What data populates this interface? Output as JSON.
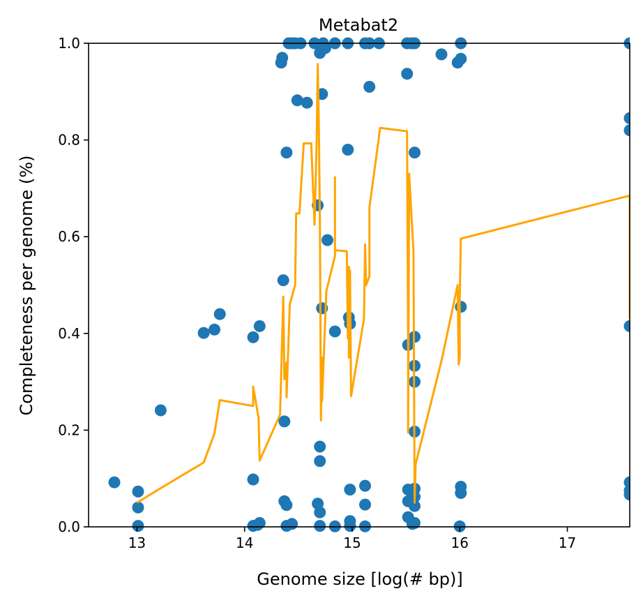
{
  "chart_data": {
    "type": "scatter",
    "title": "Metabat2",
    "xlabel": "Genome size [log(# bp)]",
    "ylabel": "Completeness per genome (%)",
    "xlim": [
      12.55,
      17.58
    ],
    "ylim": [
      0,
      1.0
    ],
    "xticks": [
      "13",
      "14",
      "15",
      "16",
      "17"
    ],
    "yticks": [
      "0.0",
      "0.2",
      "0.4",
      "0.6",
      "0.8",
      "1.0"
    ],
    "grid": false,
    "colors": {
      "points": "#1f77b4",
      "line": "#ffa500"
    },
    "series": [
      {
        "type": "scatter",
        "points": [
          [
            12.79,
            0.092
          ],
          [
            13.01,
            0.073
          ],
          [
            13.01,
            0.04
          ],
          [
            13.01,
            0.002
          ],
          [
            13.22,
            0.241
          ],
          [
            13.62,
            0.401
          ],
          [
            13.72,
            0.408
          ],
          [
            13.77,
            0.44
          ],
          [
            14.08,
            0.392
          ],
          [
            14.08,
            0.098
          ],
          [
            14.08,
            0.002
          ],
          [
            14.12,
            0.004
          ],
          [
            14.14,
            0.415
          ],
          [
            14.14,
            0.008
          ],
          [
            14.34,
            0.96
          ],
          [
            14.35,
            0.97
          ],
          [
            14.36,
            0.51
          ],
          [
            14.37,
            0.218
          ],
          [
            14.37,
            0.053
          ],
          [
            14.39,
            0.045
          ],
          [
            14.39,
            0.774
          ],
          [
            14.39,
            0.002
          ],
          [
            14.41,
            1.0
          ],
          [
            14.43,
            1.0
          ],
          [
            14.44,
            0.006
          ],
          [
            14.46,
            1.0
          ],
          [
            14.47,
            1.0
          ],
          [
            14.49,
            0.882
          ],
          [
            14.52,
            1.0
          ],
          [
            14.58,
            0.877
          ],
          [
            14.65,
            1.0
          ],
          [
            14.68,
            0.665
          ],
          [
            14.68,
            0.048
          ],
          [
            14.7,
            0.98
          ],
          [
            14.7,
            0.166
          ],
          [
            14.7,
            0.136
          ],
          [
            14.7,
            0.03
          ],
          [
            14.7,
            0.002
          ],
          [
            14.72,
            0.895
          ],
          [
            14.72,
            0.452
          ],
          [
            14.73,
            1.0
          ],
          [
            14.75,
            0.99
          ],
          [
            14.77,
            0.593
          ],
          [
            14.84,
            1.0
          ],
          [
            14.84,
            0.404
          ],
          [
            14.84,
            0.001
          ],
          [
            14.96,
            1.0
          ],
          [
            14.96,
            0.78
          ],
          [
            14.97,
            0.433
          ],
          [
            14.98,
            0.42
          ],
          [
            14.98,
            0.077
          ],
          [
            14.98,
            0.012
          ],
          [
            14.98,
            0.002
          ],
          [
            15.12,
            1.0
          ],
          [
            15.12,
            0.085
          ],
          [
            15.12,
            0.046
          ],
          [
            15.12,
            0.001
          ],
          [
            15.16,
            1.0
          ],
          [
            15.16,
            0.91
          ],
          [
            15.25,
            1.0
          ],
          [
            15.51,
            1.0
          ],
          [
            15.51,
            0.937
          ],
          [
            15.52,
            0.376
          ],
          [
            15.52,
            0.077
          ],
          [
            15.52,
            0.053
          ],
          [
            15.52,
            0.02
          ],
          [
            15.55,
            1.0
          ],
          [
            15.56,
            0.006
          ],
          [
            15.58,
            1.0
          ],
          [
            15.58,
            0.774
          ],
          [
            15.58,
            0.393
          ],
          [
            15.58,
            0.333
          ],
          [
            15.58,
            0.3
          ],
          [
            15.58,
            0.197
          ],
          [
            15.58,
            0.079
          ],
          [
            15.58,
            0.062
          ],
          [
            15.58,
            0.043
          ],
          [
            15.58,
            0.008
          ],
          [
            15.83,
            0.977
          ],
          [
            15.98,
            0.96
          ],
          [
            16.0,
            0.001
          ],
          [
            16.01,
            1.0
          ],
          [
            16.01,
            0.968
          ],
          [
            16.01,
            0.455
          ],
          [
            16.01,
            0.083
          ],
          [
            16.01,
            0.07
          ],
          [
            17.58,
            1.0
          ],
          [
            17.58,
            0.845
          ],
          [
            17.58,
            0.82
          ],
          [
            17.58,
            0.415
          ],
          [
            17.58,
            0.092
          ],
          [
            17.58,
            0.075
          ],
          [
            17.58,
            0.067
          ]
        ]
      },
      {
        "type": "line",
        "points": [
          [
            13.0,
            0.05
          ],
          [
            13.22,
            0.08
          ],
          [
            13.62,
            0.133
          ],
          [
            13.72,
            0.193
          ],
          [
            13.77,
            0.262
          ],
          [
            14.08,
            0.25
          ],
          [
            14.08,
            0.29
          ],
          [
            14.13,
            0.225
          ],
          [
            14.14,
            0.137
          ],
          [
            14.33,
            0.232
          ],
          [
            14.36,
            0.476
          ],
          [
            14.37,
            0.305
          ],
          [
            14.39,
            0.34
          ],
          [
            14.39,
            0.268
          ],
          [
            14.42,
            0.46
          ],
          [
            14.47,
            0.5
          ],
          [
            14.48,
            0.648
          ],
          [
            14.51,
            0.648
          ],
          [
            14.55,
            0.793
          ],
          [
            14.62,
            0.793
          ],
          [
            14.65,
            0.625
          ],
          [
            14.67,
            0.8
          ],
          [
            14.68,
            0.957
          ],
          [
            14.69,
            0.84
          ],
          [
            14.7,
            0.635
          ],
          [
            14.71,
            0.22
          ],
          [
            14.72,
            0.35
          ],
          [
            14.72,
            0.26
          ],
          [
            14.76,
            0.487
          ],
          [
            14.84,
            0.56
          ],
          [
            14.84,
            0.723
          ],
          [
            14.84,
            0.572
          ],
          [
            14.95,
            0.57
          ],
          [
            14.96,
            0.39
          ],
          [
            14.97,
            0.538
          ],
          [
            14.97,
            0.35
          ],
          [
            14.98,
            0.45
          ],
          [
            14.98,
            0.53
          ],
          [
            14.99,
            0.27
          ],
          [
            15.11,
            0.43
          ],
          [
            15.12,
            0.584
          ],
          [
            15.13,
            0.5
          ],
          [
            15.16,
            0.518
          ],
          [
            15.16,
            0.66
          ],
          [
            15.26,
            0.825
          ],
          [
            15.51,
            0.818
          ],
          [
            15.52,
            0.36
          ],
          [
            15.52,
            0.195
          ],
          [
            15.53,
            0.73
          ],
          [
            15.57,
            0.57
          ],
          [
            15.58,
            0.05
          ],
          [
            15.59,
            0.13
          ],
          [
            15.83,
            0.343
          ],
          [
            15.98,
            0.5
          ],
          [
            15.99,
            0.336
          ],
          [
            16.0,
            0.35
          ],
          [
            16.0,
            0.47
          ],
          [
            16.01,
            0.596
          ],
          [
            17.58,
            0.685
          ],
          [
            17.58,
            0.43
          ]
        ]
      }
    ]
  }
}
